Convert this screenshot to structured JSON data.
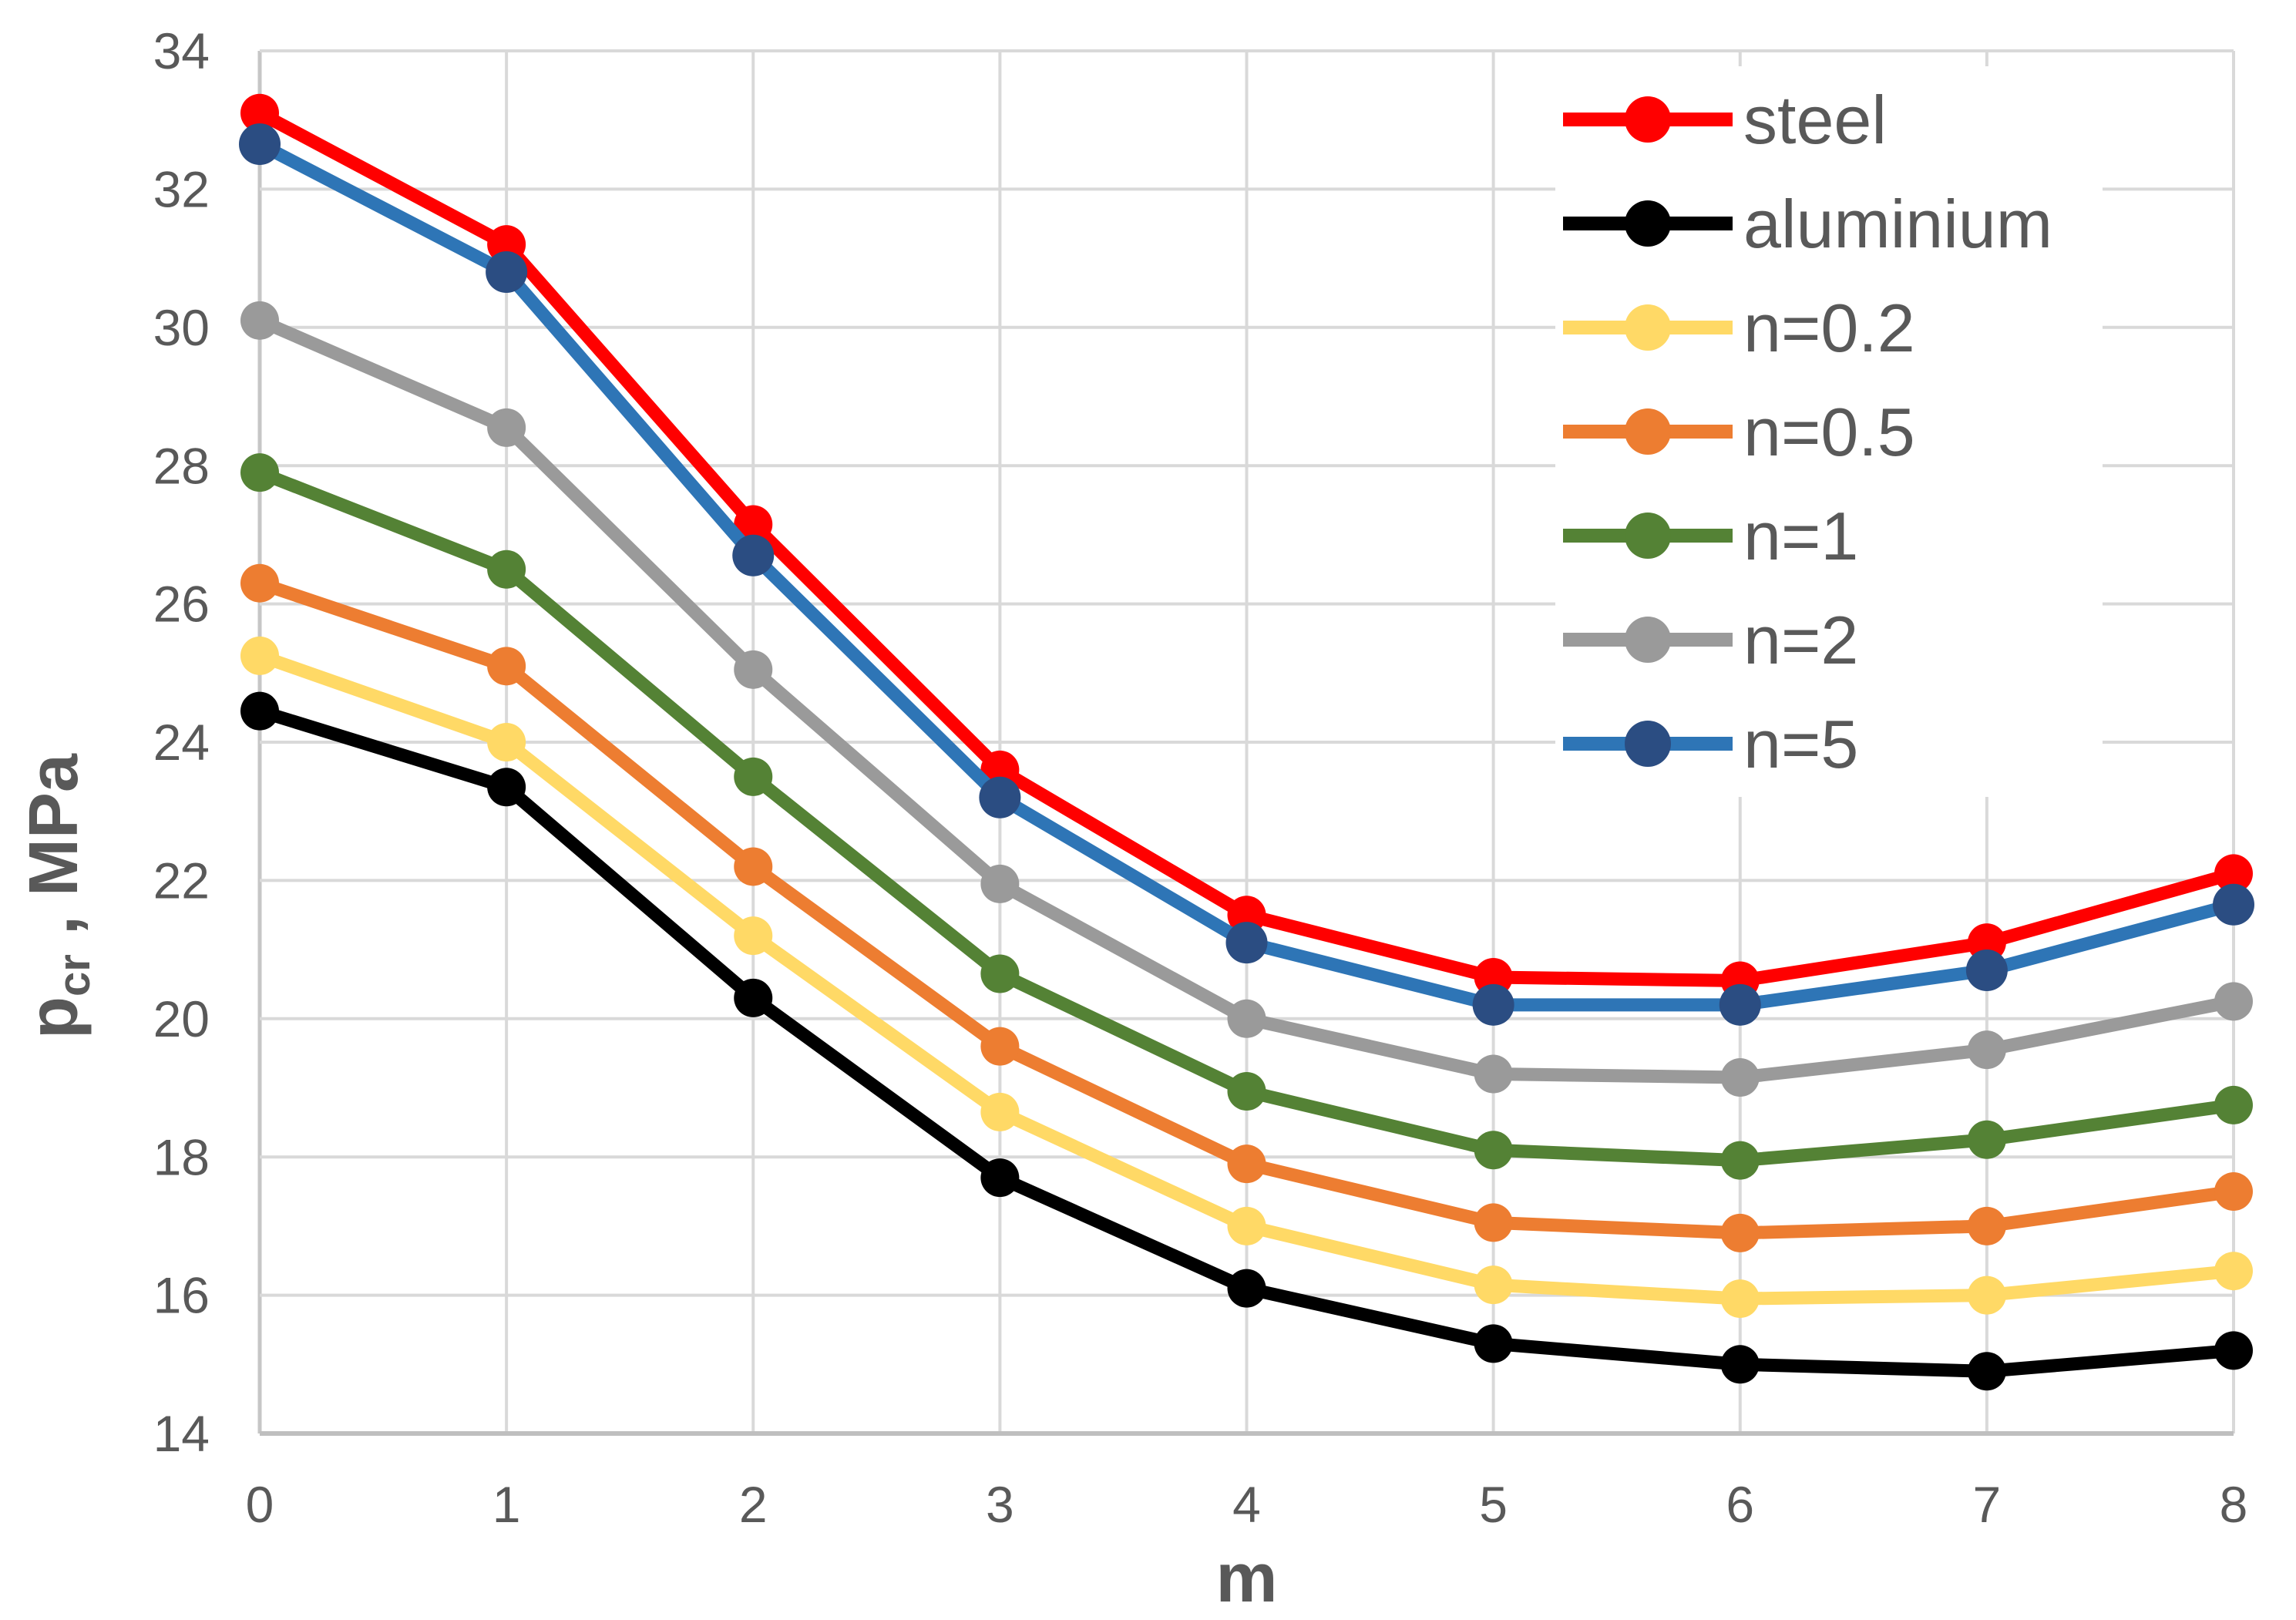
{
  "chart_data": {
    "type": "line",
    "title": "",
    "xlabel": "m",
    "ylabel": {
      "base": "p",
      "sub": "cr",
      "rest": " , MPa"
    },
    "x": [
      0,
      1,
      2,
      3,
      4,
      5,
      6,
      7,
      8
    ],
    "xlim": [
      0,
      8
    ],
    "ylim": [
      14,
      34
    ],
    "yticks": [
      14,
      16,
      18,
      20,
      22,
      24,
      26,
      28,
      30,
      32,
      34
    ],
    "grid": true,
    "legend_position": "top-right",
    "series": [
      {
        "name": "steel",
        "color": "#FF0000",
        "marker_color": "#FF0000",
        "values": [
          33.1,
          31.2,
          27.15,
          23.6,
          21.5,
          20.6,
          20.55,
          21.1,
          22.1
        ]
      },
      {
        "name": "aluminium",
        "color": "#000000",
        "marker_color": "#000000",
        "values": [
          24.45,
          23.35,
          20.3,
          17.7,
          16.1,
          15.3,
          15.0,
          14.9,
          15.2
        ]
      },
      {
        "name": "n=0.2",
        "color": "#FFD966",
        "marker_color": "#FFD966",
        "values": [
          25.25,
          24.0,
          21.2,
          18.65,
          17.0,
          16.15,
          15.95,
          16.0,
          16.35
        ]
      },
      {
        "name": "n=0.5",
        "color": "#ED7D31",
        "marker_color": "#ED7D31",
        "values": [
          26.3,
          25.1,
          22.2,
          19.6,
          17.9,
          17.05,
          16.9,
          17.0,
          17.5
        ]
      },
      {
        "name": "n=1",
        "color": "#548235",
        "marker_color": "#548235",
        "values": [
          27.9,
          26.5,
          23.5,
          20.65,
          18.95,
          18.1,
          17.95,
          18.25,
          18.75
        ]
      },
      {
        "name": "n=2",
        "color": "#9A9A9A",
        "marker_color": "#9A9A9A",
        "values": [
          30.1,
          28.55,
          25.05,
          21.95,
          20.0,
          19.2,
          19.15,
          19.55,
          20.25
        ]
      },
      {
        "name": "n=5",
        "color": "#2E75B6",
        "marker_color": "#2B4D82",
        "values": [
          32.65,
          30.8,
          26.7,
          23.2,
          21.1,
          20.2,
          20.2,
          20.7,
          21.65
        ]
      }
    ],
    "axis_text_color": "#595959",
    "gridline_color": "#D9D9D9",
    "axis_line_color": "#BFBFBF",
    "y_axis_line_color": "#C6C6C6",
    "background": "#FFFFFF"
  }
}
